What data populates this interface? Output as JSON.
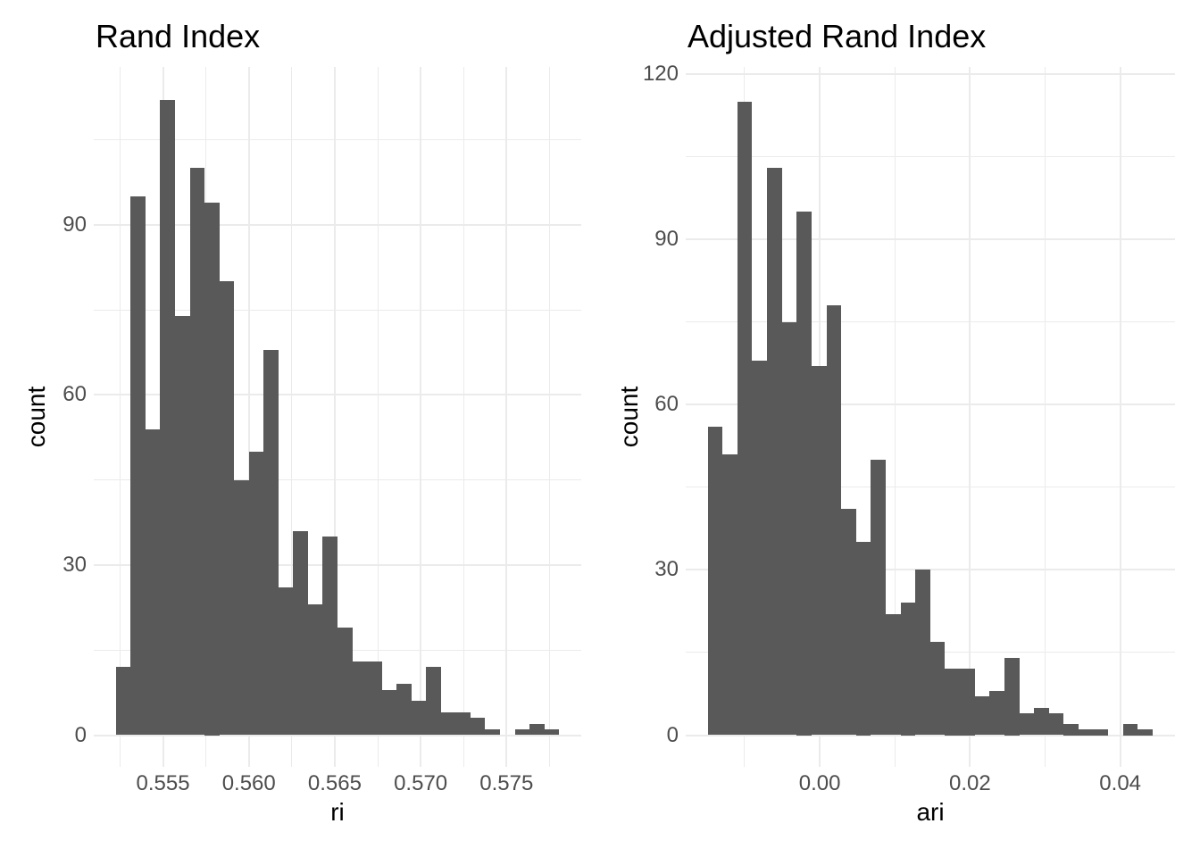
{
  "colors": {
    "background": "#FFFFFF",
    "bar_fill": "#595959",
    "grid": "#EBEBEB",
    "axis_text": "#4D4D4D",
    "title_text": "#000000"
  },
  "chart_data": [
    {
      "type": "bar",
      "subtype": "histogram",
      "title": "Rand Index",
      "xlabel": "ri",
      "ylabel": "count",
      "bin_start": 0.55226,
      "bin_width": 0.00086,
      "counts": [
        12,
        95,
        54,
        112,
        74,
        100,
        94,
        80,
        45,
        50,
        68,
        26,
        36,
        23,
        35,
        19,
        13,
        13,
        8,
        9,
        6,
        12,
        4,
        4,
        3,
        1,
        0,
        1,
        2,
        1
      ],
      "total_n": 1000,
      "x_ticks": [
        {
          "v": 0.555,
          "label": "0.555"
        },
        {
          "v": 0.56,
          "label": "0.560"
        },
        {
          "v": 0.565,
          "label": "0.565"
        },
        {
          "v": 0.57,
          "label": "0.570"
        },
        {
          "v": 0.575,
          "label": "0.575"
        }
      ],
      "y_ticks": [
        {
          "v": 0,
          "label": "0"
        },
        {
          "v": 30,
          "label": "30"
        },
        {
          "v": 60,
          "label": "60"
        },
        {
          "v": 90,
          "label": "90"
        }
      ],
      "xlim": [
        0.55097,
        0.57935
      ],
      "ylim": [
        -5.59,
        117.87
      ],
      "grid": "major+minor",
      "legend_position": "none"
    },
    {
      "type": "bar",
      "subtype": "histogram",
      "title": "Adjusted Rand Index",
      "xlabel": "ari",
      "ylabel": "count",
      "bin_start": -0.01492,
      "bin_width": 0.001975,
      "counts": [
        56,
        51,
        115,
        68,
        103,
        75,
        95,
        67,
        78,
        41,
        35,
        50,
        22,
        24,
        30,
        17,
        12,
        12,
        7,
        8,
        14,
        4,
        5,
        4,
        2,
        1,
        1,
        0,
        2,
        1
      ],
      "total_n": 1000,
      "x_ticks": [
        {
          "v": 0.0,
          "label": "0.00"
        },
        {
          "v": 0.02,
          "label": "0.02"
        },
        {
          "v": 0.04,
          "label": "0.04"
        }
      ],
      "y_ticks": [
        {
          "v": 0,
          "label": "0"
        },
        {
          "v": 30,
          "label": "30"
        },
        {
          "v": 60,
          "label": "60"
        },
        {
          "v": 90,
          "label": "90"
        },
        {
          "v": 120,
          "label": "120"
        }
      ],
      "xlim": [
        -0.01784,
        0.04729
      ],
      "ylim": [
        -5.75,
        121.25
      ],
      "grid": "major+minor",
      "legend_position": "none"
    }
  ]
}
